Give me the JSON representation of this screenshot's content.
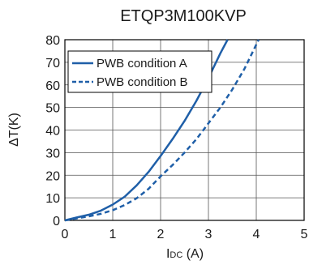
{
  "chart_data": {
    "type": "line",
    "title": "ETQP3M100KVP",
    "xlabel": {
      "main": "I",
      "sub": "DC",
      "unit": " (A)"
    },
    "ylabel": "ΔT(K)",
    "xlim": [
      0,
      5
    ],
    "ylim": [
      0,
      80
    ],
    "xticks": [
      0,
      1,
      2,
      3,
      4,
      5
    ],
    "yticks": [
      0,
      10,
      20,
      30,
      40,
      50,
      60,
      70,
      80
    ],
    "grid": true,
    "legend_position": "top-left",
    "series": [
      {
        "name": "PWB condition A",
        "style": "solid",
        "color": "#1f5fa8",
        "x": [
          0,
          0.25,
          0.5,
          0.75,
          1.0,
          1.25,
          1.5,
          1.75,
          2.0,
          2.25,
          2.5,
          2.75,
          3.0,
          3.25,
          3.4
        ],
        "y": [
          0,
          1.3,
          2.5,
          4.3,
          7.0,
          10.5,
          15.5,
          21.5,
          28.5,
          36,
          44,
          53,
          63,
          74,
          80
        ]
      },
      {
        "name": "PWB condition B",
        "style": "dashed",
        "color": "#1f5fa8",
        "x": [
          0,
          0.25,
          0.5,
          0.75,
          1.0,
          1.25,
          1.5,
          1.75,
          2.0,
          2.25,
          2.5,
          2.75,
          3.0,
          3.25,
          3.5,
          3.75,
          4.05
        ],
        "y": [
          0,
          0.9,
          1.8,
          2.9,
          4.5,
          6.8,
          9.8,
          14.0,
          19.5,
          24.5,
          30,
          36,
          43,
          50,
          58,
          67,
          80
        ]
      }
    ]
  }
}
